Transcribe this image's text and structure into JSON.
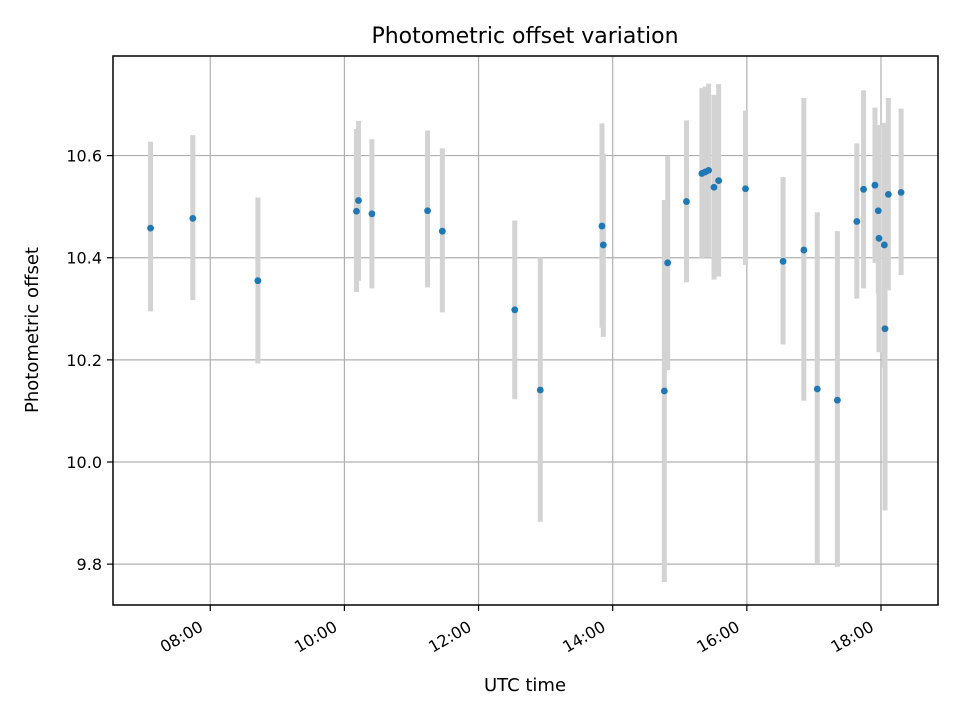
{
  "chart_data": {
    "type": "scatter",
    "title": "Photometric offset variation",
    "xlabel": "UTC time",
    "ylabel": "Photometric offset",
    "x_unit": "hours UTC",
    "xlim": [
      6.55,
      18.85
    ],
    "ylim": [
      9.72,
      10.795
    ],
    "xticks": [
      {
        "value": 8,
        "label": "08:00"
      },
      {
        "value": 10,
        "label": "10:00"
      },
      {
        "value": 12,
        "label": "12:00"
      },
      {
        "value": 14,
        "label": "14:00"
      },
      {
        "value": 16,
        "label": "16:00"
      },
      {
        "value": 18,
        "label": "18:00"
      }
    ],
    "yticks": [
      {
        "value": 9.8,
        "label": "9.8"
      },
      {
        "value": 10.0,
        "label": "10.0"
      },
      {
        "value": 10.2,
        "label": "10.2"
      },
      {
        "value": 10.4,
        "label": "10.4"
      },
      {
        "value": 10.6,
        "label": "10.6"
      }
    ],
    "grid": true,
    "colors": {
      "points": "#1f77b4",
      "errorbars": "#d3d3d3",
      "grid": "#b0b0b0"
    },
    "series": [
      {
        "points": [
          {
            "x": 7.11,
            "y": 10.458,
            "ylo": 10.295,
            "yhi": 10.627
          },
          {
            "x": 7.74,
            "y": 10.477,
            "ylo": 10.317,
            "yhi": 10.64
          },
          {
            "x": 8.71,
            "y": 10.355,
            "ylo": 10.193,
            "yhi": 10.518
          },
          {
            "x": 10.18,
            "y": 10.491,
            "ylo": 10.333,
            "yhi": 10.652
          },
          {
            "x": 10.21,
            "y": 10.512,
            "ylo": 10.355,
            "yhi": 10.668
          },
          {
            "x": 10.41,
            "y": 10.486,
            "ylo": 10.34,
            "yhi": 10.632
          },
          {
            "x": 11.24,
            "y": 10.492,
            "ylo": 10.342,
            "yhi": 10.649
          },
          {
            "x": 11.46,
            "y": 10.452,
            "ylo": 10.293,
            "yhi": 10.614
          },
          {
            "x": 12.54,
            "y": 10.298,
            "ylo": 10.123,
            "yhi": 10.473
          },
          {
            "x": 12.92,
            "y": 10.141,
            "ylo": 9.883,
            "yhi": 10.4
          },
          {
            "x": 13.84,
            "y": 10.462,
            "ylo": 10.263,
            "yhi": 10.663
          },
          {
            "x": 13.86,
            "y": 10.425,
            "ylo": 10.245,
            "yhi": 10.604
          },
          {
            "x": 14.77,
            "y": 10.139,
            "ylo": 9.765,
            "yhi": 10.513
          },
          {
            "x": 14.82,
            "y": 10.39,
            "ylo": 10.18,
            "yhi": 10.599
          },
          {
            "x": 15.1,
            "y": 10.51,
            "ylo": 10.352,
            "yhi": 10.669
          },
          {
            "x": 15.33,
            "y": 10.565,
            "ylo": 10.398,
            "yhi": 10.732
          },
          {
            "x": 15.38,
            "y": 10.568,
            "ylo": 10.401,
            "yhi": 10.735
          },
          {
            "x": 15.43,
            "y": 10.571,
            "ylo": 10.401,
            "yhi": 10.741
          },
          {
            "x": 15.51,
            "y": 10.538,
            "ylo": 10.357,
            "yhi": 10.719
          },
          {
            "x": 15.58,
            "y": 10.551,
            "ylo": 10.363,
            "yhi": 10.74
          },
          {
            "x": 15.98,
            "y": 10.535,
            "ylo": 10.386,
            "yhi": 10.688
          },
          {
            "x": 16.54,
            "y": 10.393,
            "ylo": 10.23,
            "yhi": 10.558
          },
          {
            "x": 16.85,
            "y": 10.415,
            "ylo": 10.12,
            "yhi": 10.713
          },
          {
            "x": 17.05,
            "y": 10.143,
            "ylo": 9.8,
            "yhi": 10.489
          },
          {
            "x": 17.35,
            "y": 10.121,
            "ylo": 9.795,
            "yhi": 10.452
          },
          {
            "x": 17.64,
            "y": 10.471,
            "ylo": 10.32,
            "yhi": 10.624
          },
          {
            "x": 17.74,
            "y": 10.534,
            "ylo": 10.34,
            "yhi": 10.728
          },
          {
            "x": 17.91,
            "y": 10.542,
            "ylo": 10.39,
            "yhi": 10.694
          },
          {
            "x": 17.96,
            "y": 10.492,
            "ylo": 10.33,
            "yhi": 10.659
          },
          {
            "x": 17.97,
            "y": 10.438,
            "ylo": 10.215,
            "yhi": 10.66
          },
          {
            "x": 18.05,
            "y": 10.425,
            "ylo": 10.185,
            "yhi": 10.664
          },
          {
            "x": 18.06,
            "y": 10.261,
            "ylo": 9.905,
            "yhi": 10.62
          },
          {
            "x": 18.11,
            "y": 10.524,
            "ylo": 10.336,
            "yhi": 10.713
          },
          {
            "x": 18.3,
            "y": 10.528,
            "ylo": 10.366,
            "yhi": 10.692
          }
        ]
      }
    ]
  }
}
